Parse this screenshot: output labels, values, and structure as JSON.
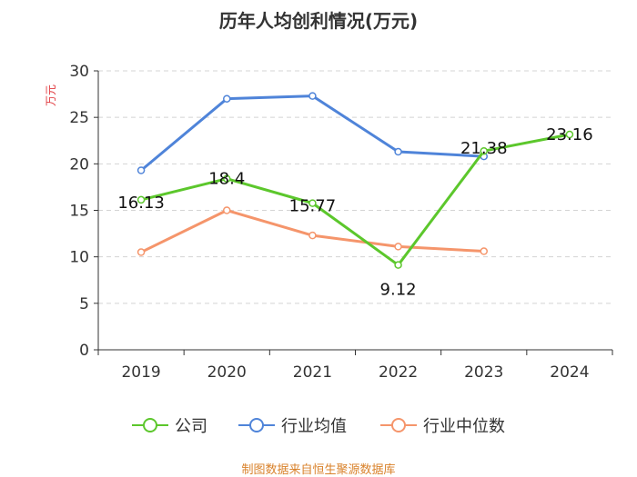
{
  "chart_data": {
    "type": "line",
    "title": "历年人均创利情况(万元)",
    "ylabel": "万元",
    "xlabel": "",
    "ylim": [
      0,
      30
    ],
    "yticks": [
      0,
      5,
      10,
      15,
      20,
      25,
      30
    ],
    "grid": true,
    "legend_position": "bottom",
    "categories": [
      "2019",
      "2020",
      "2021",
      "2022",
      "2023",
      "2024"
    ],
    "series": [
      {
        "name": "公司",
        "color": "#5cc72c",
        "values": [
          16.13,
          18.4,
          15.77,
          9.12,
          21.38,
          23.16
        ],
        "labels": [
          "16.13",
          "18.4",
          "15.77",
          "9.12",
          "21.38",
          "23.16"
        ]
      },
      {
        "name": "行业均值",
        "color": "#4f84d9",
        "values": [
          19.3,
          27.0,
          27.3,
          21.3,
          20.8,
          null
        ]
      },
      {
        "name": "行业中位数",
        "color": "#f5956b",
        "values": [
          10.5,
          15.0,
          12.3,
          11.1,
          10.6,
          null
        ]
      }
    ]
  },
  "footer": {
    "source": "制图数据来自恒生聚源数据库"
  }
}
